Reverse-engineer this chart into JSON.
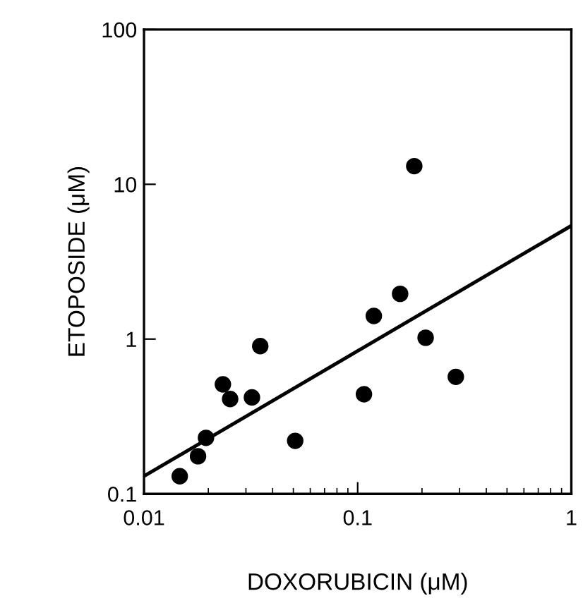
{
  "chart_data": {
    "type": "scatter",
    "xlabel": "DOXORUBICIN (μM)",
    "ylabel": "ETOPOSIDE (μM)",
    "log": "xy",
    "grid": false,
    "xlim": [
      0.01,
      1
    ],
    "ylim": [
      0.1,
      100
    ],
    "xticks": [
      0.01,
      0.1,
      1
    ],
    "yticks": [
      0.1,
      1,
      10,
      100
    ],
    "series": [
      {
        "color": "#000000",
        "marker": "circle",
        "x": [
          0.0147,
          0.0179,
          0.0195,
          0.0234,
          0.0253,
          0.032,
          0.035,
          0.051,
          0.107,
          0.119,
          0.158,
          0.184,
          0.208,
          0.288
        ],
        "values": [
          0.13,
          0.175,
          0.23,
          0.51,
          0.41,
          0.42,
          0.9,
          0.22,
          0.44,
          1.41,
          1.96,
          13.1,
          1.02,
          0.57
        ]
      },
      {
        "type": "line",
        "color": "#000000",
        "marker": "none",
        "x": [
          0.01,
          1
        ],
        "values": [
          0.13,
          5.4
        ]
      }
    ]
  }
}
